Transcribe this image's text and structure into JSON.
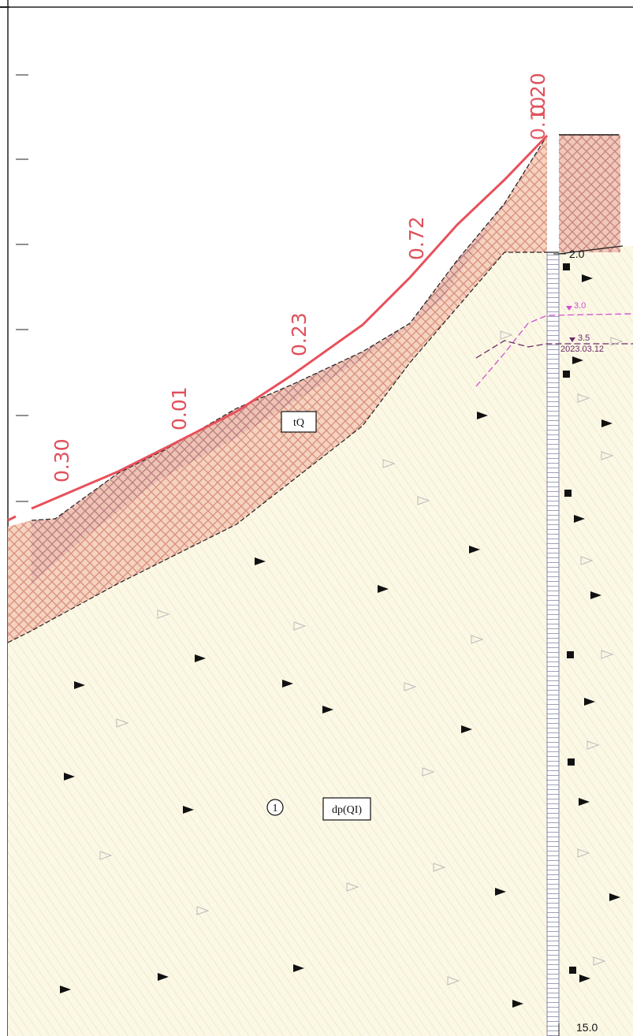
{
  "slope_labels": [
    "0.30",
    "0.01",
    "0.23",
    "0.72",
    "0.20",
    "0.10"
  ],
  "layers": {
    "upper_label": "tQ",
    "lower_label": "dp(QI)",
    "lower_number": "1"
  },
  "borehole": {
    "boundary_depth": "2.0",
    "water_level_1": "3.0",
    "water_level_2": "3.5",
    "water_level_date": "2023.03.12",
    "bottom_depth": "15.0"
  },
  "colors": {
    "profile_line": "#e8505a",
    "crosshatch_fill": "#f3c8b4",
    "crosshatch_line": "#d98a78",
    "crosshatch_dark": "#9c6a8a",
    "lower_fill": "#fbf6e2",
    "lower_hatch": "#e2d9a8",
    "water_level_1": "#d050d0",
    "water_level_2": "#6a2a6a"
  }
}
